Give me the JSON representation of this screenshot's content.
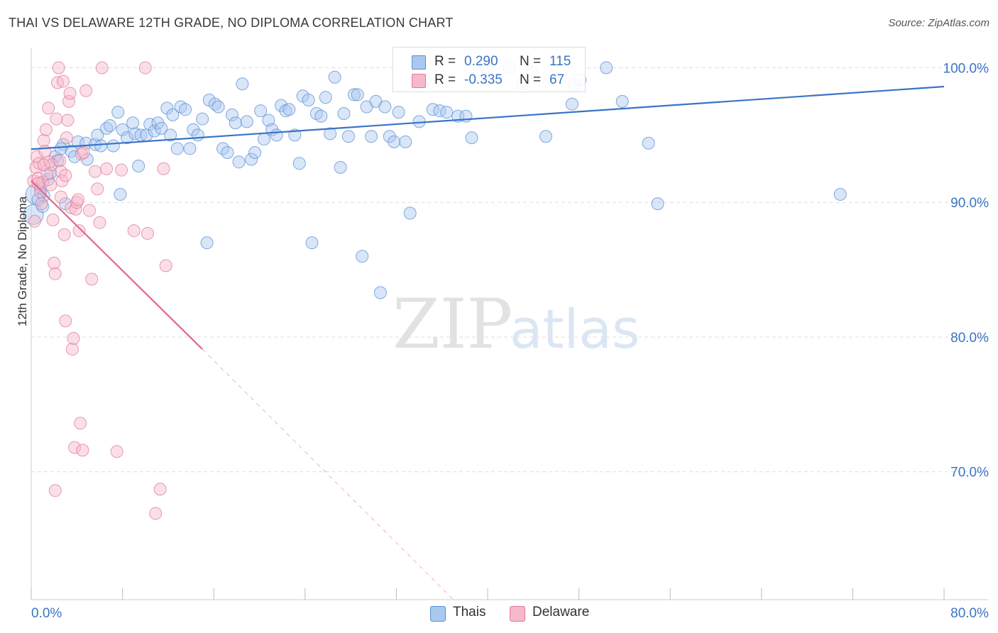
{
  "title": "THAI VS DELAWARE 12TH GRADE, NO DIPLOMA CORRELATION CHART",
  "source": "Source: ZipAtlas.com",
  "watermark": {
    "zip": "ZIP",
    "atlas": "atlas"
  },
  "legend": {
    "rows": [
      {
        "r_label": "R =",
        "r_value": "0.290",
        "n_label": "N =",
        "n_value": "115"
      },
      {
        "r_label": "R =",
        "r_value": "-0.335",
        "n_label": "N =",
        "n_value": "67"
      }
    ]
  },
  "bottom_legend": {
    "thais": "Thais",
    "delaware": "Delaware"
  },
  "colors": {
    "thais_fill": "#aac8f0",
    "thais_stroke": "#5a8fd6",
    "thais_line": "#3a74c8",
    "delaware_fill": "#f6b8ca",
    "delaware_stroke": "#e07a9a",
    "delaware_line": "#e06890",
    "axis_text": "#3b74c4"
  },
  "chart_data": {
    "type": "scatter",
    "title": "THAI VS DELAWARE 12TH GRADE, NO DIPLOMA CORRELATION CHART",
    "xlabel": "",
    "ylabel": "12th Grade, No Diploma",
    "xlim": [
      0,
      80
    ],
    "ylim": [
      60.5,
      101.5
    ],
    "x_tick_labels": [
      "0.0%",
      "80.0%"
    ],
    "y_ticks": [
      100,
      90,
      80,
      70
    ],
    "y_tick_labels": [
      "100.0%",
      "90.0%",
      "80.0%",
      "70.0%"
    ],
    "grid": true,
    "series": [
      {
        "name": "Thais",
        "r": 0.29,
        "n": 115,
        "trend": {
          "x": [
            0,
            80
          ],
          "y": [
            93.95,
            98.6
          ]
        },
        "points": [
          [
            0.2,
            89.1
          ],
          [
            0.4,
            90.6
          ],
          [
            0.8,
            91.1
          ],
          [
            1.1,
            90.5
          ],
          [
            1.5,
            91.7
          ],
          [
            1.7,
            92.2
          ],
          [
            2.1,
            93.4
          ],
          [
            2.3,
            93.1
          ],
          [
            2.8,
            94.3
          ],
          [
            3.0,
            89.9
          ],
          [
            3.5,
            93.8
          ],
          [
            4.1,
            94.5
          ],
          [
            4.9,
            93.2
          ],
          [
            4.8,
            94.4
          ],
          [
            5.6,
            94.3
          ],
          [
            5.8,
            95.0
          ],
          [
            6.1,
            94.2
          ],
          [
            6.6,
            95.5
          ],
          [
            6.9,
            95.7
          ],
          [
            7.2,
            94.2
          ],
          [
            7.6,
            96.7
          ],
          [
            7.8,
            90.6
          ],
          [
            8.0,
            95.4
          ],
          [
            8.4,
            94.8
          ],
          [
            8.9,
            95.9
          ],
          [
            9.1,
            95.1
          ],
          [
            9.4,
            92.7
          ],
          [
            9.6,
            95.0
          ],
          [
            10.1,
            95.0
          ],
          [
            10.4,
            95.8
          ],
          [
            10.8,
            95.3
          ],
          [
            11.1,
            95.9
          ],
          [
            11.4,
            95.5
          ],
          [
            11.9,
            97.0
          ],
          [
            12.2,
            95.0
          ],
          [
            12.4,
            96.5
          ],
          [
            12.8,
            94.0
          ],
          [
            13.1,
            97.1
          ],
          [
            13.5,
            96.9
          ],
          [
            13.9,
            94.0
          ],
          [
            14.2,
            95.4
          ],
          [
            14.6,
            95.0
          ],
          [
            15.0,
            96.2
          ],
          [
            15.4,
            87.0
          ],
          [
            15.6,
            97.6
          ],
          [
            16.1,
            97.3
          ],
          [
            16.4,
            97.1
          ],
          [
            16.8,
            94.0
          ],
          [
            17.2,
            93.7
          ],
          [
            17.6,
            96.5
          ],
          [
            17.9,
            95.9
          ],
          [
            18.2,
            93.0
          ],
          [
            18.5,
            98.8
          ],
          [
            18.9,
            96.0
          ],
          [
            19.3,
            93.2
          ],
          [
            19.6,
            93.7
          ],
          [
            20.1,
            96.8
          ],
          [
            20.4,
            94.7
          ],
          [
            20.8,
            96.1
          ],
          [
            21.1,
            95.4
          ],
          [
            21.5,
            95.0
          ],
          [
            21.9,
            97.2
          ],
          [
            22.3,
            96.8
          ],
          [
            22.6,
            96.9
          ],
          [
            23.1,
            95.0
          ],
          [
            23.5,
            92.9
          ],
          [
            23.8,
            97.9
          ],
          [
            24.3,
            97.6
          ],
          [
            24.6,
            87.0
          ],
          [
            25.0,
            96.6
          ],
          [
            25.4,
            96.4
          ],
          [
            25.8,
            97.8
          ],
          [
            26.2,
            95.1
          ],
          [
            26.6,
            99.3
          ],
          [
            27.1,
            92.6
          ],
          [
            27.4,
            96.6
          ],
          [
            27.8,
            94.9
          ],
          [
            28.3,
            98.0
          ],
          [
            28.6,
            98.0
          ],
          [
            29.0,
            86.0
          ],
          [
            29.4,
            97.1
          ],
          [
            29.8,
            94.9
          ],
          [
            30.2,
            97.5
          ],
          [
            30.6,
            83.3
          ],
          [
            31.0,
            97.1
          ],
          [
            31.4,
            94.9
          ],
          [
            31.8,
            94.5
          ],
          [
            32.2,
            96.7
          ],
          [
            32.8,
            94.5
          ],
          [
            33.2,
            89.2
          ],
          [
            34.0,
            96.0
          ],
          [
            34.5,
            99.0
          ],
          [
            35.2,
            96.9
          ],
          [
            35.8,
            96.8
          ],
          [
            36.4,
            96.7
          ],
          [
            37.4,
            96.4
          ],
          [
            38.1,
            96.4
          ],
          [
            38.6,
            94.8
          ],
          [
            39.9,
            100.0
          ],
          [
            41.9,
            100.0
          ],
          [
            43.1,
            98.8
          ],
          [
            43.9,
            99.7
          ],
          [
            45.1,
            94.9
          ],
          [
            47.4,
            97.3
          ],
          [
            47.6,
            98.7
          ],
          [
            48.1,
            99.1
          ],
          [
            50.4,
            100.0
          ],
          [
            51.8,
            97.5
          ],
          [
            54.1,
            94.4
          ],
          [
            54.9,
            89.9
          ],
          [
            70.9,
            90.6
          ],
          [
            1.0,
            89.7
          ],
          [
            0.6,
            90.2
          ],
          [
            2.6,
            94.0
          ],
          [
            3.8,
            93.4
          ]
        ]
      },
      {
        "name": "Delaware",
        "r": -0.335,
        "n": 67,
        "trend": {
          "x": [
            0,
            15.0
          ],
          "y": [
            91.6,
            79.1
          ]
        },
        "trend_dashed": {
          "x": [
            15.0,
            37.0
          ],
          "y": [
            79.1,
            60.5
          ]
        },
        "points": [
          [
            0.2,
            91.6
          ],
          [
            0.4,
            92.6
          ],
          [
            0.5,
            93.4
          ],
          [
            0.6,
            91.8
          ],
          [
            0.7,
            92.9
          ],
          [
            0.8,
            90.8
          ],
          [
            0.9,
            89.9
          ],
          [
            1.0,
            91.5
          ],
          [
            1.1,
            94.6
          ],
          [
            1.2,
            93.8
          ],
          [
            1.3,
            95.4
          ],
          [
            1.4,
            92.1
          ],
          [
            1.5,
            97.0
          ],
          [
            1.6,
            93.0
          ],
          [
            1.7,
            91.3
          ],
          [
            1.8,
            92.8
          ],
          [
            1.9,
            88.7
          ],
          [
            2.0,
            85.5
          ],
          [
            2.1,
            84.7
          ],
          [
            2.2,
            96.2
          ],
          [
            2.3,
            98.9
          ],
          [
            2.4,
            100.0
          ],
          [
            2.5,
            93.1
          ],
          [
            2.6,
            92.3
          ],
          [
            2.7,
            91.6
          ],
          [
            2.8,
            99.0
          ],
          [
            2.9,
            87.6
          ],
          [
            3.0,
            81.2
          ],
          [
            3.1,
            94.8
          ],
          [
            3.2,
            96.1
          ],
          [
            3.3,
            97.5
          ],
          [
            3.4,
            98.1
          ],
          [
            3.5,
            89.6
          ],
          [
            3.6,
            79.1
          ],
          [
            3.7,
            79.9
          ],
          [
            3.8,
            71.8
          ],
          [
            3.9,
            89.5
          ],
          [
            4.0,
            90.0
          ],
          [
            4.1,
            90.2
          ],
          [
            4.2,
            87.9
          ],
          [
            4.3,
            73.6
          ],
          [
            4.4,
            93.6
          ],
          [
            4.5,
            71.6
          ],
          [
            4.6,
            93.7
          ],
          [
            4.8,
            98.3
          ],
          [
            5.1,
            89.4
          ],
          [
            5.3,
            84.3
          ],
          [
            5.6,
            92.3
          ],
          [
            5.8,
            91.0
          ],
          [
            6.0,
            88.5
          ],
          [
            6.2,
            100.0
          ],
          [
            6.6,
            92.5
          ],
          [
            7.5,
            71.5
          ],
          [
            7.9,
            92.4
          ],
          [
            9.0,
            87.9
          ],
          [
            10.0,
            100.0
          ],
          [
            10.2,
            87.7
          ],
          [
            10.9,
            66.9
          ],
          [
            11.3,
            68.7
          ],
          [
            11.6,
            92.5
          ],
          [
            11.8,
            85.3
          ],
          [
            0.3,
            88.6
          ],
          [
            0.6,
            91.4
          ],
          [
            1.1,
            92.8
          ],
          [
            2.1,
            68.6
          ],
          [
            2.6,
            90.4
          ],
          [
            3.0,
            92.0
          ]
        ]
      }
    ]
  }
}
